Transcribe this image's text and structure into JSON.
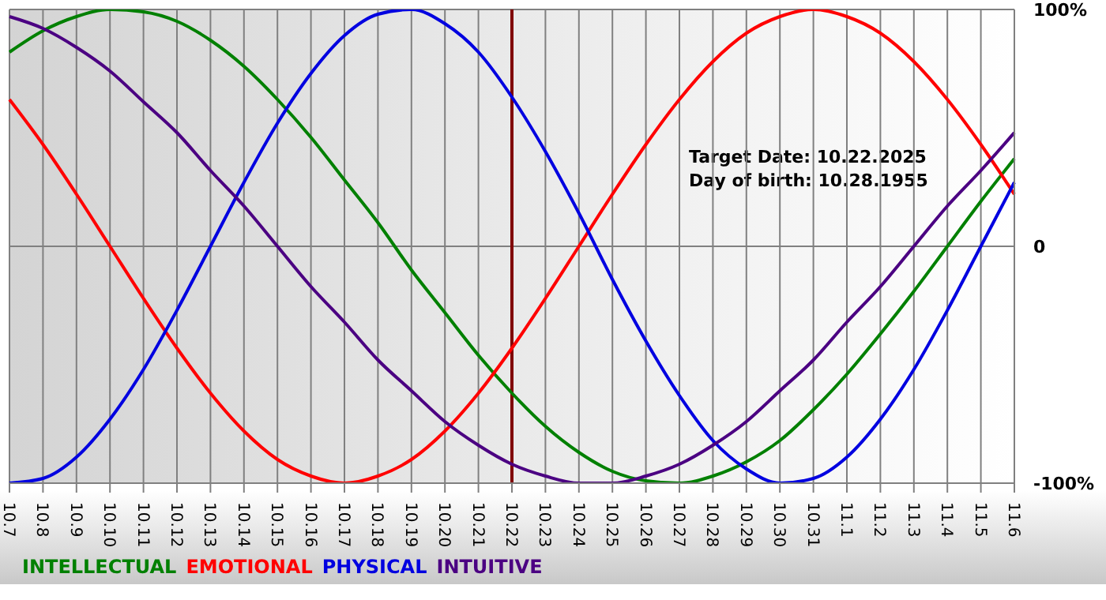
{
  "chart_data": {
    "type": "line",
    "categories": [
      "10.7",
      "10.8",
      "10.9",
      "10.10",
      "10.11",
      "10.12",
      "10.13",
      "10.14",
      "10.15",
      "10.16",
      "10.17",
      "10.18",
      "10.19",
      "10.20",
      "10.21",
      "10.22",
      "10.23",
      "10.24",
      "10.25",
      "10.26",
      "10.27",
      "10.28",
      "10.29",
      "10.30",
      "10.31",
      "11.1",
      "11.2",
      "11.3",
      "11.4",
      "11.5",
      "11.6"
    ],
    "series": [
      {
        "name": "INTELLECTUAL",
        "color": "#008000",
        "values": [
          82,
          91,
          97,
          100,
          99,
          95,
          87,
          76,
          62,
          46,
          28,
          10,
          -10,
          -28,
          -46,
          -62,
          -76,
          -87,
          -95,
          -99,
          -100,
          -97,
          -91,
          -82,
          -69,
          -54,
          -37,
          -19,
          0,
          19,
          37
        ]
      },
      {
        "name": "EMOTIONAL",
        "color": "#ff0000",
        "values": [
          62,
          43,
          22,
          0,
          -22,
          -43,
          -62,
          -78,
          -90,
          -97,
          -100,
          -97,
          -90,
          -78,
          -62,
          -43,
          -22,
          0,
          22,
          43,
          62,
          78,
          90,
          97,
          100,
          97,
          90,
          78,
          62,
          43,
          22
        ]
      },
      {
        "name": "PHYSICAL",
        "color": "#0000e0",
        "values": [
          -100,
          -98,
          -89,
          -73,
          -52,
          -27,
          0,
          27,
          52,
          73,
          89,
          98,
          100,
          94,
          82,
          63,
          40,
          14,
          -14,
          -40,
          -63,
          -82,
          -94,
          -100,
          -98,
          -89,
          -73,
          -52,
          -27,
          0,
          27
        ]
      },
      {
        "name": "INTUITIVE",
        "color": "#4b0082",
        "values": [
          97,
          92,
          84,
          74,
          61,
          48,
          32,
          17,
          0,
          -17,
          -32,
          -48,
          -61,
          -74,
          -84,
          -92,
          -97,
          -100,
          -100,
          -97,
          -92,
          -84,
          -74,
          -61,
          -48,
          -32,
          -17,
          0,
          17,
          32,
          48
        ]
      }
    ],
    "ylim": [
      -100,
      100
    ],
    "yticks": [
      {
        "value": 100,
        "label": "100%"
      },
      0,
      {
        "value": -100,
        "label": "-100%"
      }
    ],
    "grid": true,
    "legend": "bottom",
    "marker": "none",
    "line_style": "solid",
    "ref_lines": [
      {
        "axis": "x",
        "value": "10.22",
        "color": "#800000"
      }
    ],
    "annotations": [
      "Target Date: 10.22.2025",
      "Day of birth: 10.28.1955"
    ]
  }
}
